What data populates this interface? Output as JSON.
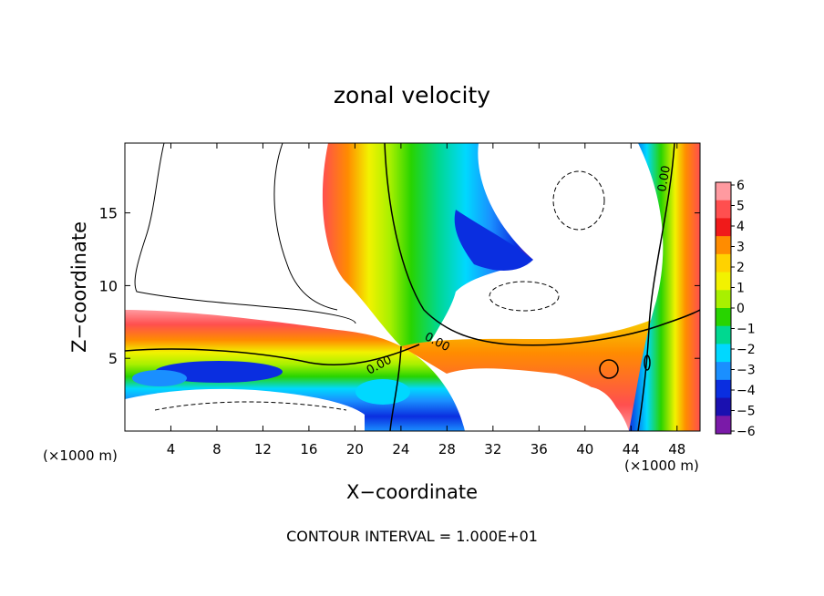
{
  "chart_data": {
    "type": "heatmap",
    "title": "zonal velocity",
    "xlabel": "X−coordinate",
    "ylabel": "Z−coordinate",
    "x_unit_left": "(×1000 m)",
    "x_unit_right": "(×1000 m)",
    "footer": "CONTOUR INTERVAL = 1.000E+01",
    "xlim": [
      0,
      50
    ],
    "ylim": [
      0,
      19.8
    ],
    "x_ticks": [
      "4",
      "8",
      "12",
      "16",
      "20",
      "24",
      "28",
      "32",
      "36",
      "40",
      "44",
      "48"
    ],
    "y_ticks": [
      "5",
      "10",
      "15"
    ],
    "colorbar": {
      "labels": [
        "6",
        "5",
        "4",
        "3",
        "2",
        "1",
        "0",
        "−1",
        "−2",
        "−3",
        "−4",
        "−5",
        "−6"
      ],
      "colors": [
        "#ff9aa0",
        "#ff4f4f",
        "#f01a1a",
        "#ff8c00",
        "#ffd200",
        "#f2f200",
        "#a8f000",
        "#28d400",
        "#00d890",
        "#00d8ff",
        "#1a8fff",
        "#0a2ee0",
        "#1a10b0",
        "#7a1aa8"
      ],
      "range": [
        -6,
        6
      ]
    },
    "contour_labels": [
      "0.00",
      "0.00",
      "0.00"
    ]
  }
}
